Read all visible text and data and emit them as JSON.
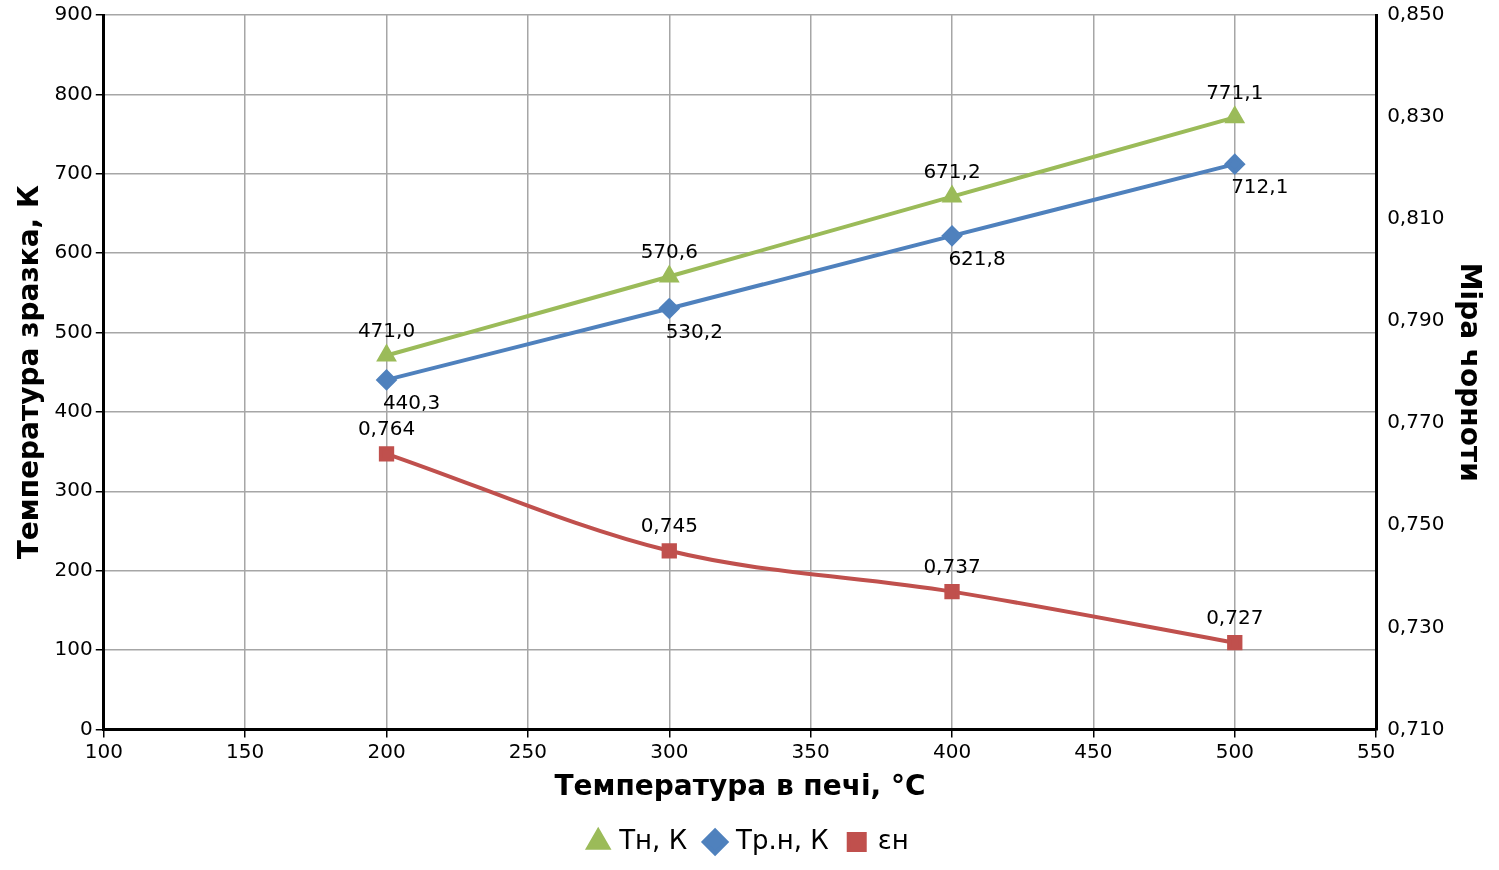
{
  "chart_data": {
    "type": "line",
    "xlabel": "Температура в печі, °C",
    "ylabel": "Температура зразка, К",
    "y2label": "Міра чорноти",
    "x": [
      200,
      300,
      400,
      500
    ],
    "series": [
      {
        "name": "Тн, К",
        "color": "#9bbb59",
        "marker": "triangle",
        "values": [
          471.0,
          570.6,
          671.2,
          771.1
        ],
        "value_labels": [
          "471,0",
          "570,6",
          "671,2",
          "771,1"
        ]
      },
      {
        "name": "Тр.н, К",
        "color": "#4f81bd",
        "marker": "diamond",
        "values": [
          440.3,
          530.2,
          621.8,
          712.1
        ],
        "value_labels": [
          "440,3",
          "530,2",
          "621,8",
          "712,1"
        ]
      },
      {
        "name": "εн",
        "color": "#c0504d",
        "marker": "square",
        "axis": "y2",
        "values": [
          0.764,
          0.745,
          0.737,
          0.727
        ],
        "value_labels": [
          "0,764",
          "0,745",
          "0,737",
          "0,727"
        ]
      }
    ],
    "xlim": [
      100,
      550
    ],
    "xticks": [
      100,
      150,
      200,
      250,
      300,
      350,
      400,
      450,
      500,
      550
    ],
    "ylim": [
      0,
      900
    ],
    "yticks": [
      0,
      100,
      200,
      300,
      400,
      500,
      600,
      700,
      800,
      900
    ],
    "y2lim": [
      0.71,
      0.85
    ],
    "y2ticks": [
      {
        "value": 0.71,
        "label": "0,710"
      },
      {
        "value": 0.73,
        "label": "0,730"
      },
      {
        "value": 0.75,
        "label": "0,750"
      },
      {
        "value": 0.77,
        "label": "0,770"
      },
      {
        "value": 0.79,
        "label": "0,790"
      },
      {
        "value": 0.81,
        "label": "0,810"
      },
      {
        "value": 0.83,
        "label": "0,830"
      },
      {
        "value": 0.85,
        "label": "0,850"
      }
    ],
    "grid": true,
    "legend": "bottom",
    "line_style": "solid"
  }
}
